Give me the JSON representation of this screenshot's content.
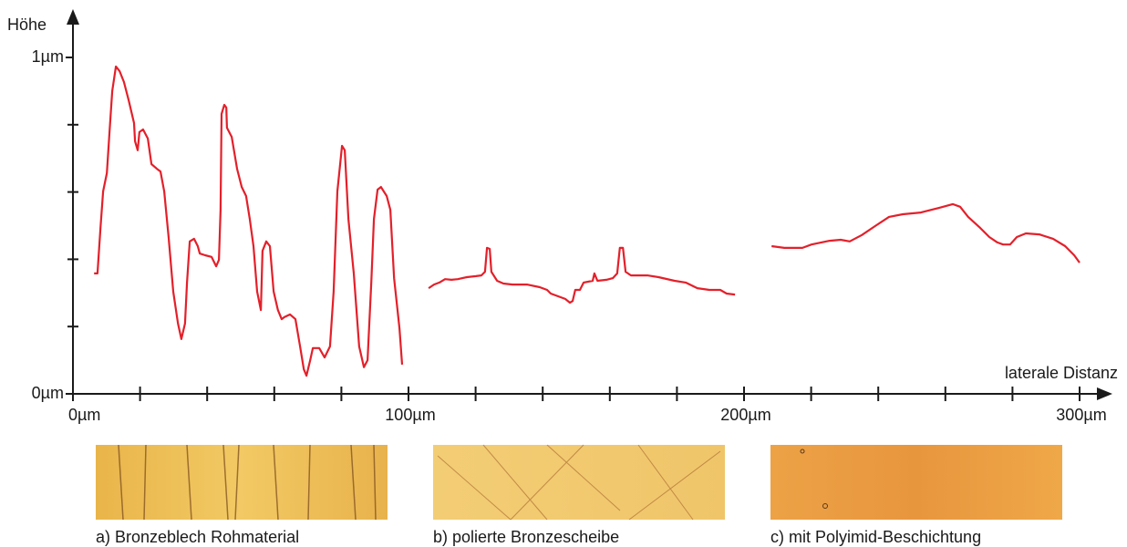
{
  "chart_data": {
    "type": "line",
    "x_label": "laterale Distanz",
    "y_label": "Höhe",
    "color": "#e3202a",
    "xlim": [
      0,
      300
    ],
    "ylim": [
      0,
      1
    ],
    "xticks": [
      {
        "value": 0,
        "label": "0µm"
      },
      {
        "value": 100,
        "label": "100µm"
      },
      {
        "value": 200,
        "label": "200µm"
      },
      {
        "value": 300,
        "label": "300µm"
      }
    ],
    "yticks": [
      {
        "value": 0,
        "label": "0µm"
      },
      {
        "value": 1,
        "label": "1µm"
      }
    ],
    "xminorticks": [
      20,
      40,
      60,
      80,
      120,
      140,
      160,
      180,
      220,
      240,
      260,
      280
    ],
    "yminorticks": [
      0.2,
      0.4,
      0.6,
      0.8
    ],
    "x": [
      6.3,
      7.3,
      8.2,
      9.0,
      10.1,
      10.9,
      11.7,
      12.8,
      13.9,
      15.2,
      16.6,
      18.2,
      18.5,
      19.3,
      19.8,
      20.9,
      22.3,
      23.4,
      25.0,
      26.1,
      27.2,
      28.5,
      29.9,
      31.3,
      32.3,
      33.4,
      34.0,
      34.8,
      36.1,
      37.2,
      37.8,
      39.4,
      41.3,
      42.7,
      43.5,
      44.0,
      44.3,
      45.1,
      45.7,
      45.9,
      47.3,
      48.9,
      50.3,
      51.6,
      52.7,
      53.8,
      54.9,
      56.0,
      56.5,
      57.6,
      58.7,
      59.8,
      61.1,
      62.2,
      63.0,
      64.7,
      66.3,
      67.7,
      68.8,
      69.6,
      70.7,
      71.5,
      73.4,
      75.0,
      76.6,
      77.7,
      78.8,
      80.2,
      81.0,
      82.1,
      83.7,
      85.3,
      86.7,
      87.8,
      88.9,
      89.7,
      90.8,
      91.8,
      93.5,
      94.6,
      95.7,
      97.3,
      98.1,
      null,
      106.0,
      107.6,
      109.2,
      110.9,
      112.8,
      114.7,
      117.4,
      120.1,
      121.7,
      122.8,
      123.4,
      124.2,
      124.7,
      126.4,
      128.3,
      131.0,
      135.3,
      139.1,
      141.3,
      142.4,
      144.6,
      146.7,
      148.1,
      148.9,
      149.7,
      151.1,
      152.2,
      154.9,
      155.4,
      156.3,
      159.0,
      160.9,
      162.2,
      163.0,
      163.9,
      164.7,
      166.3,
      171.2,
      174.5,
      179.3,
      182.6,
      186.1,
      189.7,
      192.9,
      194.8,
      197.3,
      null,
      208.2,
      212.0,
      217.4,
      220.1,
      225.5,
      228.8,
      231.5,
      235.1,
      239.1,
      243.2,
      247.3,
      252.7,
      258.2,
      262.2,
      264.4,
      266.8,
      270.4,
      273.1,
      275.5,
      277.2,
      279.3,
      281.3,
      284.0,
      288.0,
      292.1,
      295.7,
      298.4,
      300.0
    ],
    "values": [
      0.358,
      0.358,
      0.493,
      0.602,
      0.656,
      0.778,
      0.9,
      0.973,
      0.959,
      0.927,
      0.873,
      0.805,
      0.751,
      0.724,
      0.778,
      0.786,
      0.759,
      0.683,
      0.669,
      0.661,
      0.602,
      0.466,
      0.304,
      0.209,
      0.163,
      0.209,
      0.331,
      0.453,
      0.461,
      0.439,
      0.417,
      0.412,
      0.407,
      0.379,
      0.398,
      0.547,
      0.832,
      0.859,
      0.851,
      0.791,
      0.764,
      0.669,
      0.615,
      0.588,
      0.52,
      0.439,
      0.304,
      0.249,
      0.425,
      0.453,
      0.439,
      0.304,
      0.249,
      0.222,
      0.228,
      0.236,
      0.222,
      0.141,
      0.073,
      0.054,
      0.1,
      0.136,
      0.136,
      0.108,
      0.141,
      0.304,
      0.602,
      0.737,
      0.724,
      0.52,
      0.358,
      0.141,
      0.079,
      0.1,
      0.331,
      0.52,
      0.607,
      0.615,
      0.588,
      0.547,
      0.344,
      0.195,
      0.087,
      null,
      0.314,
      0.325,
      0.331,
      0.341,
      0.339,
      0.341,
      0.347,
      0.35,
      0.352,
      0.363,
      0.434,
      0.431,
      0.363,
      0.336,
      0.328,
      0.325,
      0.325,
      0.317,
      0.309,
      0.298,
      0.29,
      0.282,
      0.271,
      0.276,
      0.309,
      0.309,
      0.331,
      0.336,
      0.358,
      0.336,
      0.339,
      0.344,
      0.358,
      0.434,
      0.434,
      0.363,
      0.352,
      0.352,
      0.347,
      0.336,
      0.331,
      0.314,
      0.309,
      0.309,
      0.298,
      0.295,
      null,
      0.439,
      0.434,
      0.434,
      0.444,
      0.455,
      0.458,
      0.453,
      0.472,
      0.499,
      0.526,
      0.534,
      0.539,
      0.553,
      0.564,
      0.556,
      0.526,
      0.493,
      0.466,
      0.45,
      0.444,
      0.444,
      0.466,
      0.477,
      0.474,
      0.461,
      0.439,
      0.412,
      0.39
    ]
  },
  "panels": [
    {
      "caption": "a) Bronzeblech Rohmaterial"
    },
    {
      "caption": "b) polierte Bronzescheibe"
    },
    {
      "caption": "c) mit Polyimid-Beschichtung"
    }
  ]
}
